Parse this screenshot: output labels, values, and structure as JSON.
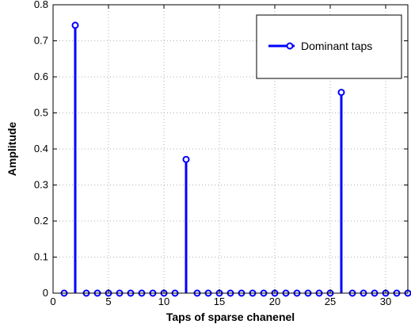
{
  "chart_data": {
    "type": "stem",
    "title": "",
    "xlabel": "Taps of sparse chanenel",
    "ylabel": "Amplitude",
    "xlim": [
      0,
      32
    ],
    "ylim": [
      0,
      0.8
    ],
    "xticks": [
      "0",
      "5",
      "10",
      "15",
      "20",
      "25",
      "30"
    ],
    "yticks": [
      "0",
      "0.1",
      "0.2",
      "0.3",
      "0.4",
      "0.5",
      "0.6",
      "0.7",
      "0.8"
    ],
    "grid": true,
    "legend_position": "top-right",
    "series": [
      {
        "name": "Dominant taps",
        "color": "#0000ff",
        "marker": "circle",
        "x": [
          1,
          2,
          3,
          4,
          5,
          6,
          7,
          8,
          9,
          10,
          11,
          12,
          13,
          14,
          15,
          16,
          17,
          18,
          19,
          20,
          21,
          22,
          23,
          24,
          25,
          26,
          27,
          28,
          29,
          30,
          31,
          32
        ],
        "y": [
          0,
          0.743,
          0,
          0,
          0,
          0,
          0,
          0,
          0,
          0,
          0,
          0.371,
          0,
          0,
          0,
          0,
          0,
          0,
          0,
          0,
          0,
          0,
          0,
          0,
          0,
          0.557,
          0,
          0,
          0,
          0,
          0,
          0
        ]
      }
    ]
  }
}
